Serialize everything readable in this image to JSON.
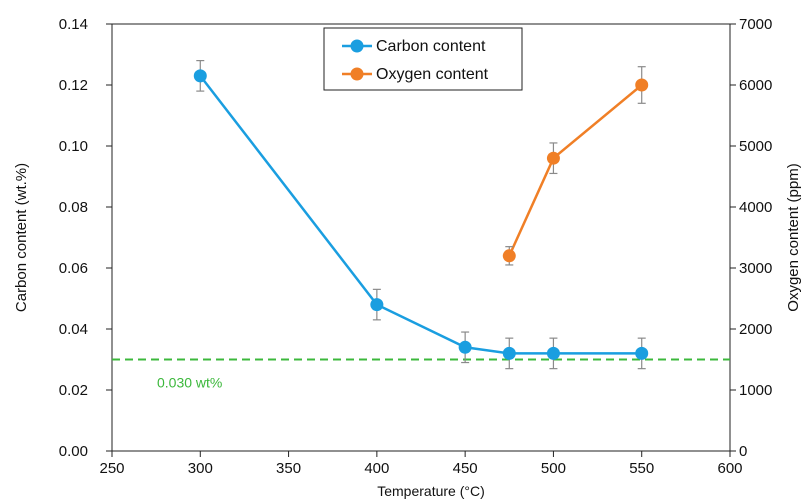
{
  "chart_data": {
    "type": "line",
    "xlabel": "Temperature (°C)",
    "ylabel": "Carbon content (wt.%)",
    "y2label": "Oxygen content (ppm)",
    "xlim": [
      250,
      600
    ],
    "ylim": [
      0.0,
      0.14
    ],
    "y2lim": [
      0,
      7000
    ],
    "x_ticks": [
      "250",
      "300",
      "350",
      "400",
      "450",
      "500",
      "550",
      "600"
    ],
    "y_ticks": [
      "0.00",
      "0.02",
      "0.04",
      "0.06",
      "0.08",
      "0.10",
      "0.12",
      "0.14"
    ],
    "y2_ticks": [
      "0",
      "1000",
      "2000",
      "3000",
      "4000",
      "5000",
      "6000",
      "7000"
    ],
    "grid": false,
    "legend_position": "top-center",
    "series": [
      {
        "name": "Carbon content",
        "axis": "left",
        "color": "#1a9ee0",
        "x": [
          300,
          400,
          450,
          475,
          500,
          550
        ],
        "y": [
          0.123,
          0.048,
          0.034,
          0.032,
          0.032,
          0.032
        ],
        "error": [
          0.005,
          0.005,
          0.005,
          0.005,
          0.005,
          0.005
        ]
      },
      {
        "name": "Oxygen content",
        "axis": "right",
        "color": "#f07f26",
        "x": [
          475,
          500,
          550
        ],
        "y": [
          3200,
          4800,
          6000
        ],
        "error": [
          150,
          250,
          300
        ]
      }
    ],
    "reference_line": {
      "label": "0.030 wt%",
      "y": 0.03,
      "color": "#3cb83c",
      "style": "dashed"
    }
  }
}
